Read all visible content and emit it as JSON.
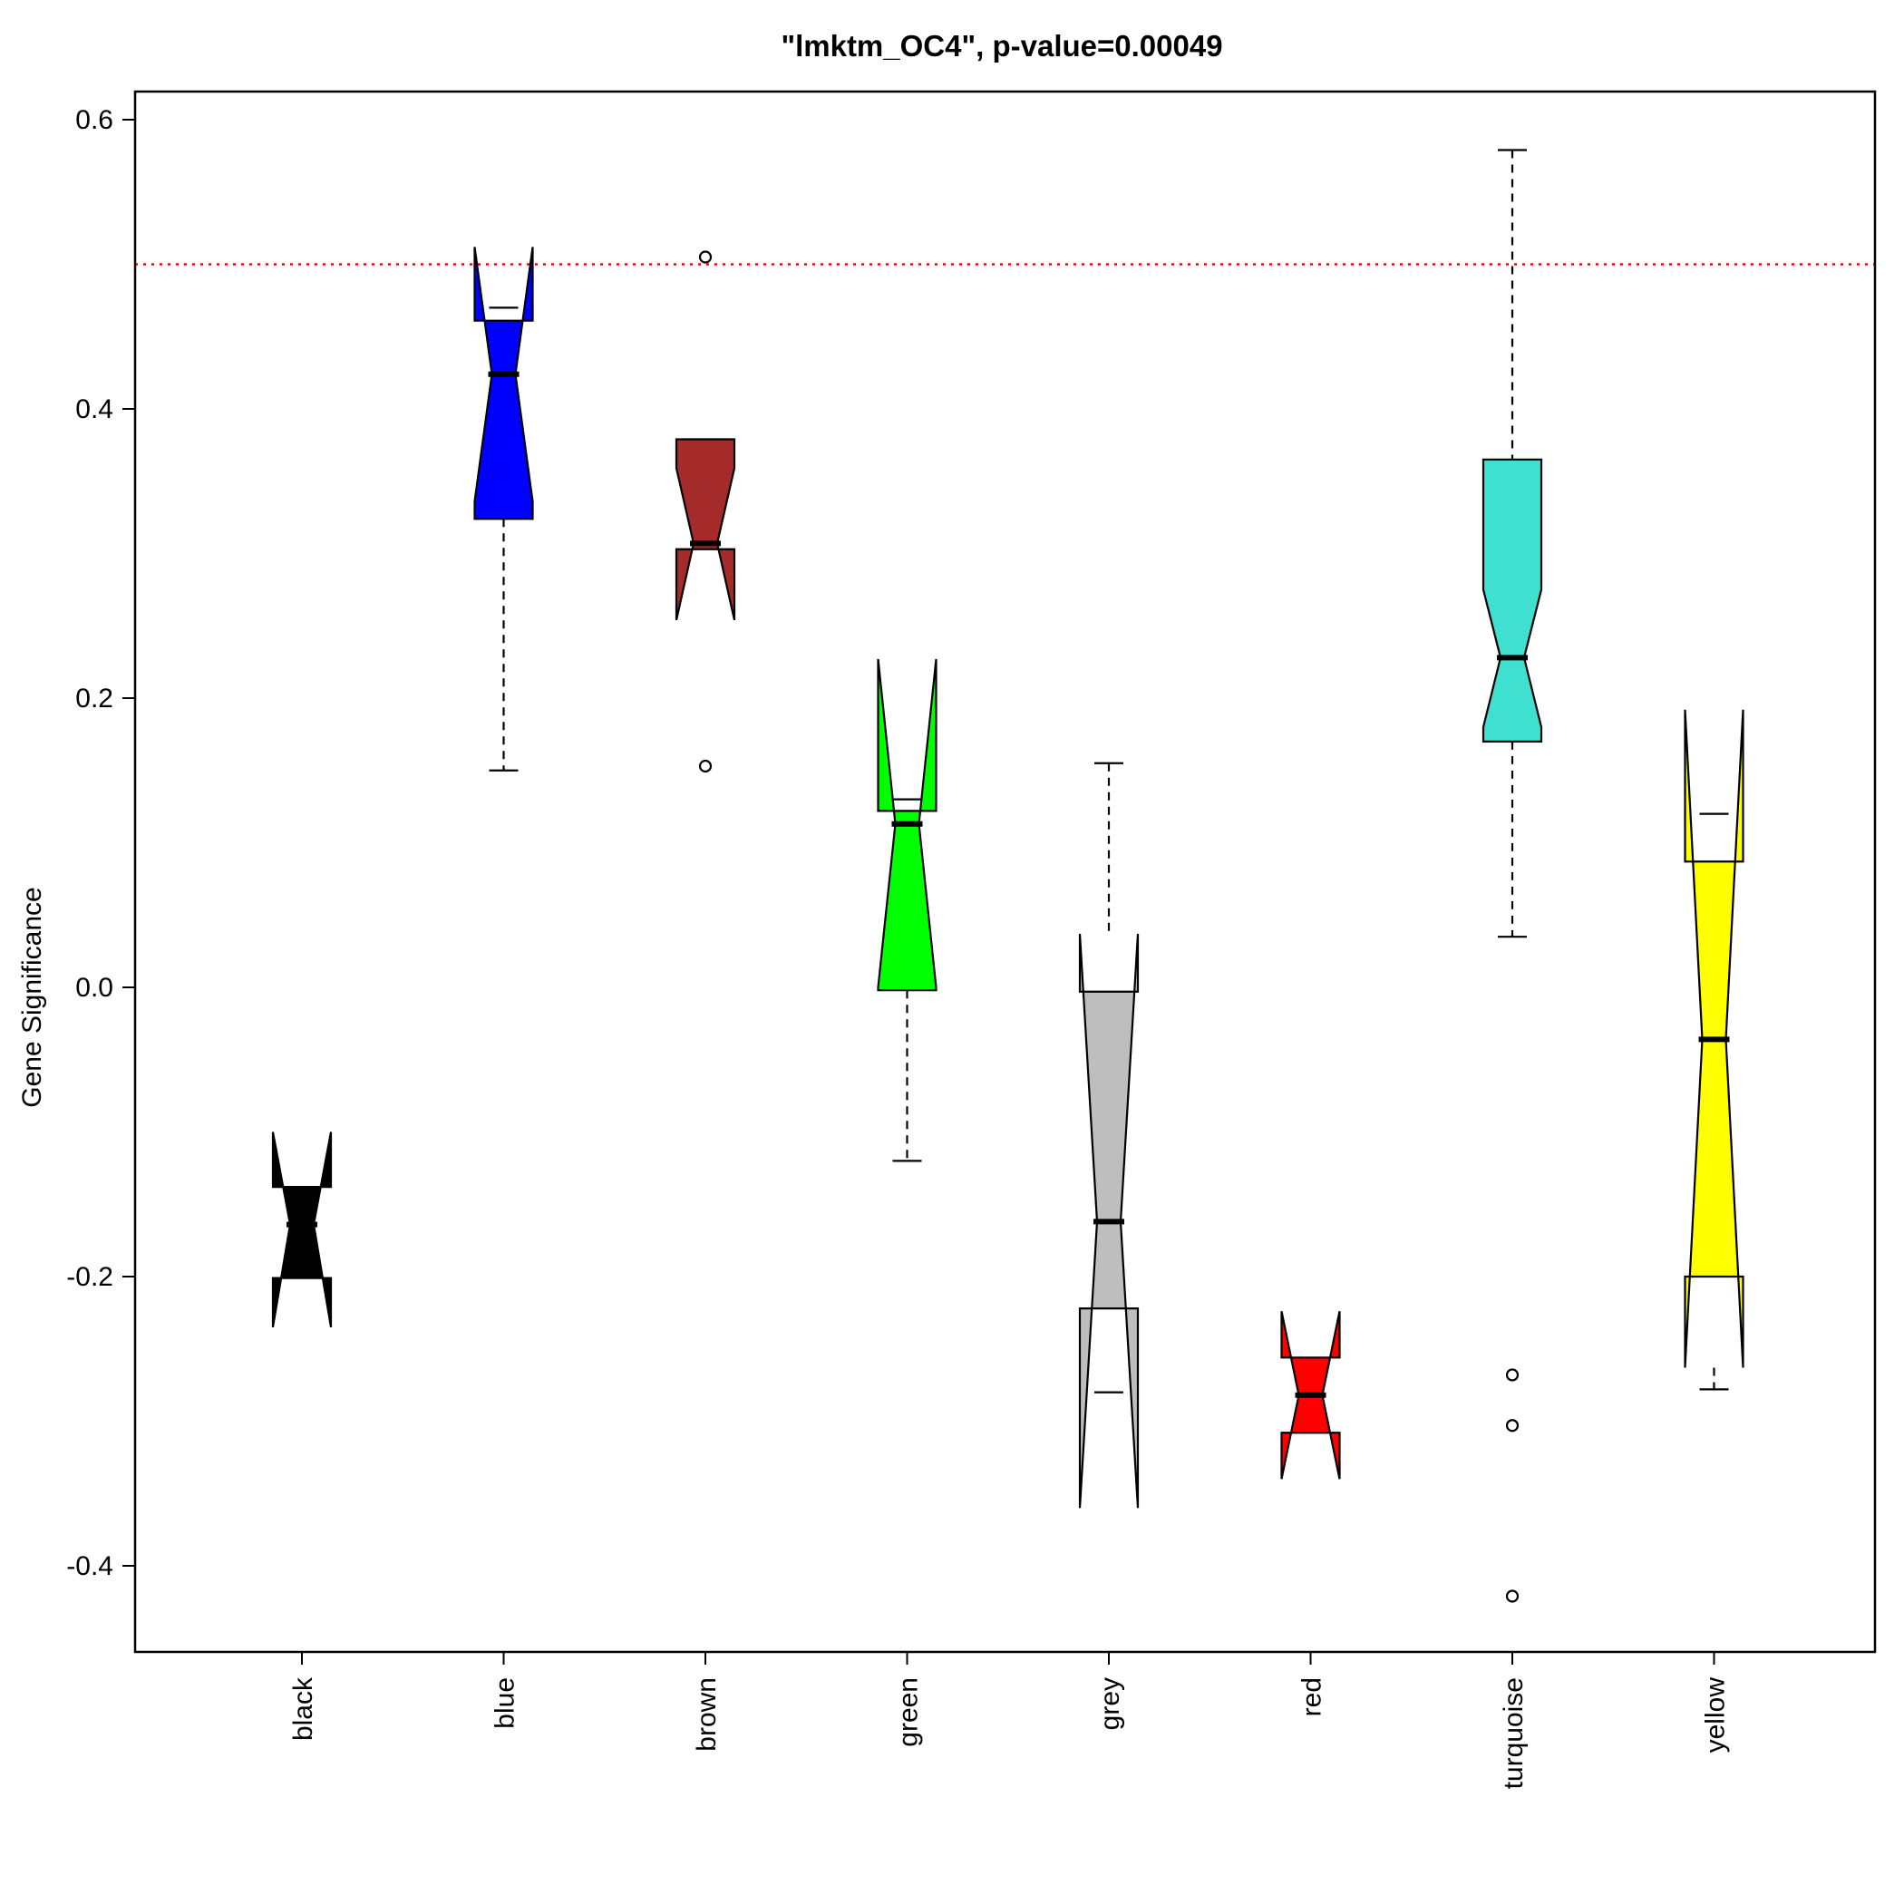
{
  "chart_data": {
    "type": "box",
    "title": "\"lmktm_OC4\", p-value=0.00049",
    "ylabel": "Gene Significance",
    "xlabel": "",
    "ylim": [
      -0.46,
      0.62
    ],
    "yticks": [
      -0.4,
      -0.2,
      0.0,
      0.2,
      0.4,
      0.6
    ],
    "ytick_labels": [
      "-0.4",
      "-0.2",
      "0.0",
      "0.2",
      "0.4",
      "0.6"
    ],
    "reference_line": {
      "value": 0.5,
      "color": "#ff0000",
      "style": "dotted"
    },
    "grid": false,
    "legend": "none",
    "notched": true,
    "categories": [
      "black",
      "blue",
      "brown",
      "green",
      "grey",
      "red",
      "turquoise",
      "yellow"
    ],
    "boxes": [
      {
        "name": "black",
        "color": "#000000",
        "whisker_low": -0.201,
        "q1": -0.201,
        "median": -0.164,
        "q3": -0.138,
        "whisker_high": -0.138,
        "notch_low": -0.235,
        "notch_high": -0.1,
        "outliers": []
      },
      {
        "name": "blue",
        "color": "#0000ff",
        "whisker_low": 0.15,
        "q1": 0.324,
        "median": 0.424,
        "q3": 0.461,
        "whisker_high": 0.47,
        "notch_low": 0.336,
        "notch_high": 0.512,
        "outliers": []
      },
      {
        "name": "brown",
        "color": "#a52a2a",
        "whisker_low": 0.303,
        "q1": 0.303,
        "median": 0.307,
        "q3": 0.379,
        "whisker_high": 0.379,
        "notch_low": 0.254,
        "notch_high": 0.359,
        "outliers": [
          0.505,
          0.153
        ]
      },
      {
        "name": "green",
        "color": "#00ff00",
        "whisker_low": -0.12,
        "q1": -0.002,
        "median": 0.113,
        "q3": 0.122,
        "whisker_high": 0.13,
        "notch_low": 0.0,
        "notch_high": 0.227,
        "outliers": []
      },
      {
        "name": "grey",
        "color": "#bebebe",
        "whisker_low": -0.28,
        "q1": -0.222,
        "median": -0.162,
        "q3": -0.003,
        "whisker_high": 0.155,
        "notch_low": -0.36,
        "notch_high": 0.037,
        "outliers": []
      },
      {
        "name": "red",
        "color": "#ff0000",
        "whisker_low": -0.308,
        "q1": -0.308,
        "median": -0.282,
        "q3": -0.256,
        "whisker_high": -0.256,
        "notch_low": -0.34,
        "notch_high": -0.224,
        "outliers": []
      },
      {
        "name": "turquoise",
        "color": "#40e0d0",
        "whisker_low": 0.035,
        "q1": 0.17,
        "median": 0.228,
        "q3": 0.365,
        "whisker_high": 0.579,
        "notch_low": 0.18,
        "notch_high": 0.275,
        "outliers": [
          -0.268,
          -0.303,
          -0.421
        ]
      },
      {
        "name": "yellow",
        "color": "#ffff00",
        "whisker_low": -0.278,
        "q1": -0.2,
        "median": -0.036,
        "q3": 0.087,
        "whisker_high": 0.12,
        "notch_low": -0.263,
        "notch_high": 0.192,
        "outliers": []
      }
    ]
  }
}
